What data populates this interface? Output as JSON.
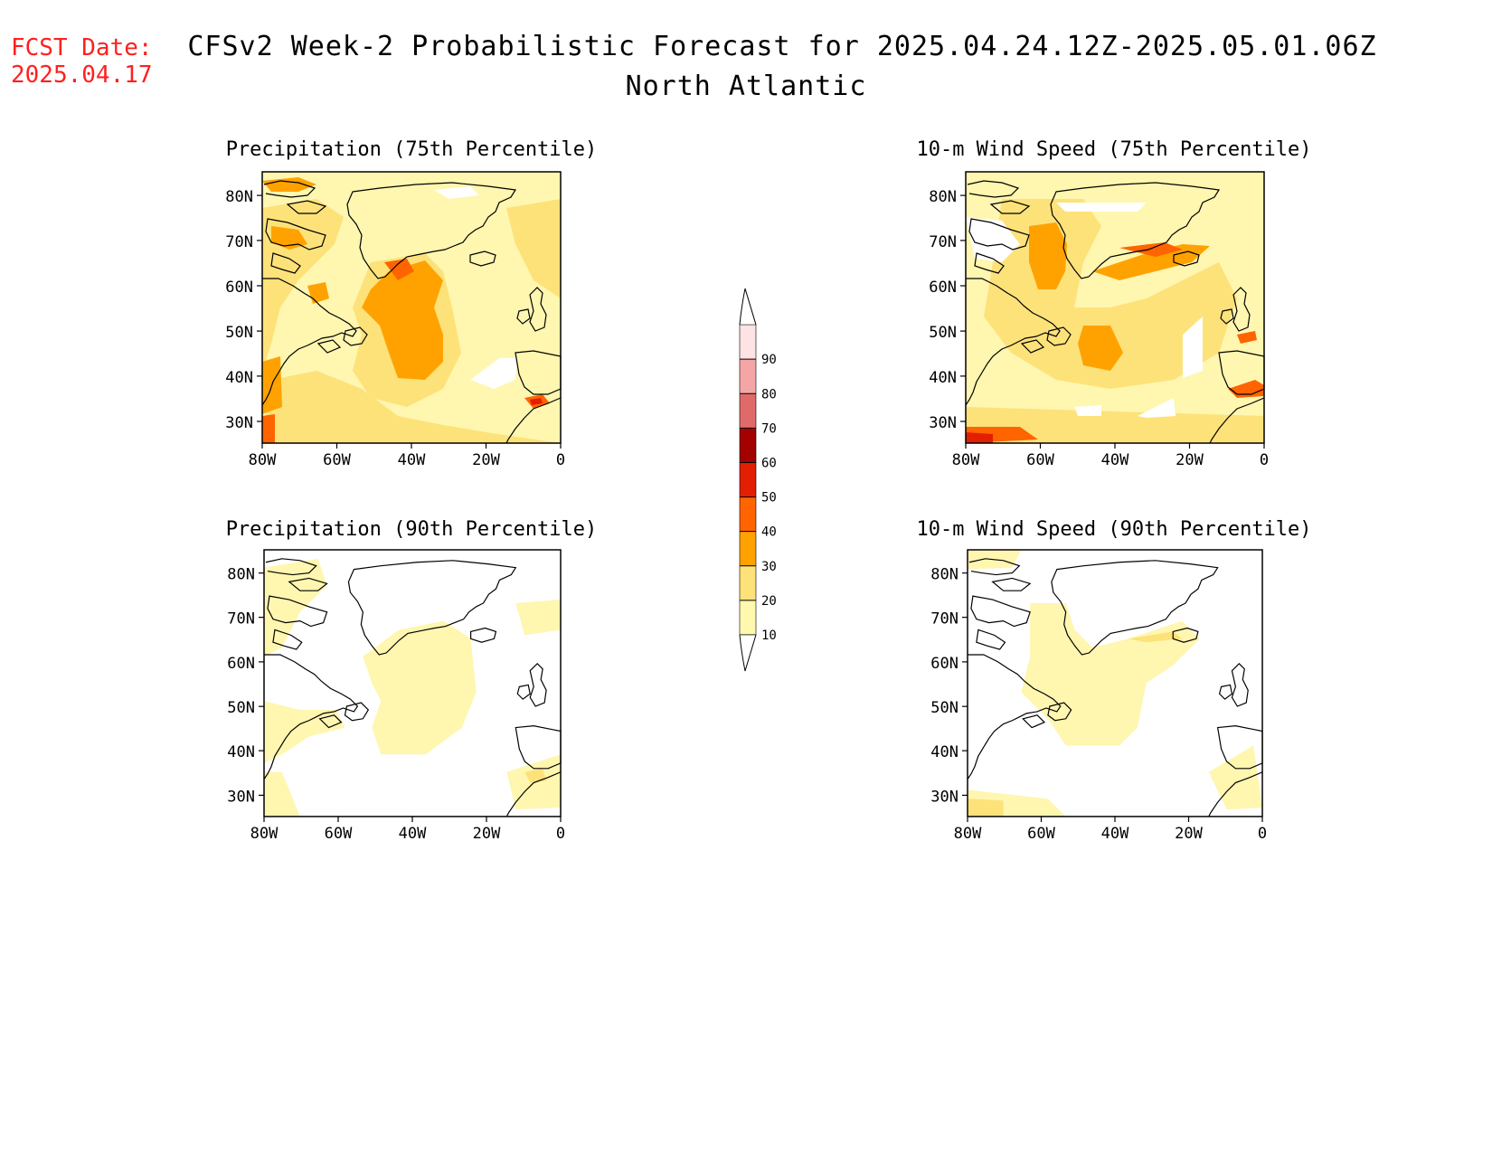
{
  "header": {
    "fcst_label": "FCST Date:",
    "fcst_date": "2025.04.17",
    "title": "CFSv2 Week-2 Probabilistic Forecast for 2025.04.24.12Z-2025.05.01.06Z",
    "subtitle": "North Atlantic"
  },
  "panels": [
    {
      "title": "Precipitation (75th Percentile)"
    },
    {
      "title": "10-m Wind Speed (75th Percentile)"
    },
    {
      "title": "Precipitation (90th Percentile)"
    },
    {
      "title": "10-m Wind Speed (90th Percentile)"
    }
  ],
  "axes": {
    "lat_labels": [
      "80N",
      "70N",
      "60N",
      "50N",
      "40N",
      "30N"
    ],
    "lon_labels": [
      "80W",
      "60W",
      "40W",
      "20W",
      "0"
    ]
  },
  "colorbar": {
    "levels": [
      "10",
      "20",
      "30",
      "40",
      "50",
      "60",
      "70",
      "80",
      "90"
    ],
    "colors": [
      "#fff9b0",
      "#fde27a",
      "#ffa200",
      "#ff6400",
      "#e21f00",
      "#a50000",
      "#e06a6a",
      "#f4a6a6",
      "#fde3e3"
    ]
  },
  "palette": {
    "c10": "#fff6b0",
    "c20": "#fde27a",
    "c30": "#ffa200",
    "c40": "#ff6400",
    "c50": "#e21f00"
  }
}
